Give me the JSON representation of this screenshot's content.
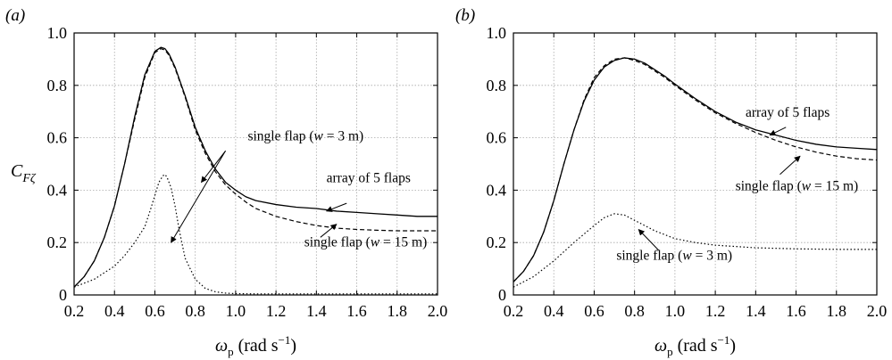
{
  "chart_data": [
    {
      "type": "line",
      "panel_label": "(a)",
      "ylabel": "C",
      "ylabel_sub": "Fζ",
      "xlabel": "ω",
      "xlabel_sub": "p",
      "xlabel_units": " (rad s",
      "xlabel_units_sup": "−1",
      "xlabel_units_end": ")",
      "xlim": [
        0.2,
        2.0
      ],
      "ylim": [
        0,
        1.0
      ],
      "xticks": [
        "0.2",
        "0.4",
        "0.6",
        "0.8",
        "1.0",
        "1.2",
        "1.4",
        "1.6",
        "1.8",
        "2.0"
      ],
      "yticks": [
        "0",
        "0.2",
        "0.4",
        "0.6",
        "0.8",
        "1.0"
      ],
      "grid": true,
      "series": [
        {
          "style": "solid",
          "x": [
            0.2,
            0.25,
            0.3,
            0.35,
            0.4,
            0.45,
            0.5,
            0.55,
            0.6,
            0.63,
            0.65,
            0.67,
            0.7,
            0.75,
            0.8,
            0.85,
            0.9,
            0.95,
            1.0,
            1.05,
            1.1,
            1.2,
            1.3,
            1.4,
            1.5,
            1.6,
            1.7,
            1.8,
            1.9,
            2.0
          ],
          "y": [
            0.03,
            0.07,
            0.13,
            0.22,
            0.34,
            0.5,
            0.68,
            0.84,
            0.93,
            0.945,
            0.94,
            0.92,
            0.87,
            0.76,
            0.64,
            0.55,
            0.48,
            0.43,
            0.4,
            0.375,
            0.36,
            0.345,
            0.335,
            0.33,
            0.32,
            0.315,
            0.31,
            0.305,
            0.3,
            0.3
          ]
        },
        {
          "style": "dashed",
          "x": [
            0.2,
            0.25,
            0.3,
            0.35,
            0.4,
            0.45,
            0.5,
            0.55,
            0.6,
            0.63,
            0.65,
            0.67,
            0.7,
            0.75,
            0.8,
            0.85,
            0.9,
            0.95,
            1.0,
            1.05,
            1.1,
            1.2,
            1.3,
            1.4,
            1.5,
            1.6,
            1.7,
            1.8,
            1.9,
            2.0
          ],
          "y": [
            0.03,
            0.07,
            0.13,
            0.22,
            0.34,
            0.5,
            0.67,
            0.83,
            0.925,
            0.94,
            0.935,
            0.915,
            0.865,
            0.755,
            0.63,
            0.54,
            0.47,
            0.42,
            0.385,
            0.355,
            0.33,
            0.3,
            0.28,
            0.265,
            0.255,
            0.25,
            0.247,
            0.245,
            0.245,
            0.245
          ]
        },
        {
          "style": "dotted",
          "x": [
            0.2,
            0.3,
            0.4,
            0.45,
            0.5,
            0.55,
            0.58,
            0.6,
            0.62,
            0.64,
            0.65,
            0.66,
            0.68,
            0.7,
            0.72,
            0.75,
            0.8,
            0.85,
            0.9,
            0.95,
            1.0,
            1.1,
            1.2,
            1.4,
            1.6,
            1.8,
            2.0
          ],
          "y": [
            0.03,
            0.06,
            0.11,
            0.15,
            0.2,
            0.26,
            0.33,
            0.38,
            0.43,
            0.455,
            0.46,
            0.45,
            0.41,
            0.34,
            0.25,
            0.14,
            0.06,
            0.025,
            0.012,
            0.007,
            0.005,
            0.004,
            0.004,
            0.004,
            0.004,
            0.004,
            0.004
          ]
        }
      ],
      "annotations": [
        {
          "text": "single flap (",
          "italic": "w",
          "rest": " = 3 m)",
          "pos": [
            1.06,
            0.59
          ],
          "arrows": [
            [
              0.95,
              0.55,
              0.83,
              0.43
            ],
            [
              0.95,
              0.55,
              0.68,
              0.2
            ]
          ]
        },
        {
          "text": "array of 5 flaps",
          "pos": [
            1.45,
            0.43
          ],
          "arrows": [
            [
              1.55,
              0.35,
              1.45,
              0.32
            ]
          ]
        },
        {
          "text": "single flap (",
          "italic": "w",
          "rest": " = 15 m)",
          "pos": [
            1.34,
            0.185
          ],
          "arrows": [
            [
              1.42,
              0.22,
              1.5,
              0.27
            ]
          ]
        }
      ]
    },
    {
      "type": "line",
      "panel_label": "(b)",
      "ylabel": "",
      "xlabel": "ω",
      "xlabel_sub": "p",
      "xlabel_units": " (rad s",
      "xlabel_units_sup": "−1",
      "xlabel_units_end": ")",
      "xlim": [
        0.2,
        2.0
      ],
      "ylim": [
        0,
        1.0
      ],
      "xticks": [
        "0.2",
        "0.4",
        "0.6",
        "0.8",
        "1.0",
        "1.2",
        "1.4",
        "1.6",
        "1.8",
        "2.0"
      ],
      "yticks": [
        "0",
        "0.2",
        "0.4",
        "0.6",
        "0.8",
        "1.0"
      ],
      "grid": true,
      "series": [
        {
          "style": "solid",
          "x": [
            0.2,
            0.25,
            0.3,
            0.35,
            0.4,
            0.45,
            0.5,
            0.55,
            0.6,
            0.65,
            0.7,
            0.75,
            0.8,
            0.85,
            0.9,
            0.95,
            1.0,
            1.1,
            1.2,
            1.3,
            1.4,
            1.5,
            1.6,
            1.7,
            1.8,
            1.9,
            2.0
          ],
          "y": [
            0.05,
            0.09,
            0.15,
            0.24,
            0.36,
            0.5,
            0.63,
            0.74,
            0.82,
            0.87,
            0.895,
            0.905,
            0.9,
            0.885,
            0.86,
            0.835,
            0.805,
            0.75,
            0.7,
            0.66,
            0.63,
            0.61,
            0.59,
            0.575,
            0.565,
            0.56,
            0.555
          ]
        },
        {
          "style": "dashed",
          "x": [
            0.2,
            0.25,
            0.3,
            0.35,
            0.4,
            0.45,
            0.5,
            0.55,
            0.6,
            0.65,
            0.7,
            0.75,
            0.8,
            0.85,
            0.9,
            0.95,
            1.0,
            1.1,
            1.2,
            1.3,
            1.4,
            1.5,
            1.6,
            1.7,
            1.8,
            1.9,
            2.0
          ],
          "y": [
            0.05,
            0.09,
            0.15,
            0.24,
            0.36,
            0.5,
            0.63,
            0.745,
            0.83,
            0.875,
            0.9,
            0.905,
            0.895,
            0.88,
            0.855,
            0.83,
            0.8,
            0.745,
            0.695,
            0.655,
            0.62,
            0.59,
            0.565,
            0.545,
            0.53,
            0.52,
            0.515
          ]
        },
        {
          "style": "dotted",
          "x": [
            0.2,
            0.3,
            0.4,
            0.5,
            0.6,
            0.65,
            0.7,
            0.75,
            0.8,
            0.85,
            0.9,
            0.95,
            1.0,
            1.1,
            1.2,
            1.3,
            1.4,
            1.5,
            1.6,
            1.7,
            1.8,
            1.9,
            2.0
          ],
          "y": [
            0.03,
            0.07,
            0.13,
            0.2,
            0.265,
            0.295,
            0.31,
            0.305,
            0.285,
            0.265,
            0.245,
            0.23,
            0.215,
            0.2,
            0.19,
            0.185,
            0.18,
            0.178,
            0.176,
            0.175,
            0.174,
            0.174,
            0.174
          ]
        }
      ],
      "annotations": [
        {
          "text": "array of 5 flaps",
          "pos": [
            1.35,
            0.68
          ],
          "arrows": [
            [
              1.55,
              0.64,
              1.47,
              0.61
            ]
          ]
        },
        {
          "text": "single flap (",
          "italic": "w",
          "rest": " = 15 m)",
          "pos": [
            1.3,
            0.4
          ],
          "arrows": [
            [
              1.52,
              0.46,
              1.62,
              0.53
            ]
          ]
        },
        {
          "text": "single flap (",
          "italic": "w",
          "rest": " = 3 m)",
          "pos": [
            0.71,
            0.135
          ],
          "arrows": [
            [
              0.92,
              0.17,
              0.82,
              0.25
            ]
          ]
        }
      ]
    }
  ]
}
